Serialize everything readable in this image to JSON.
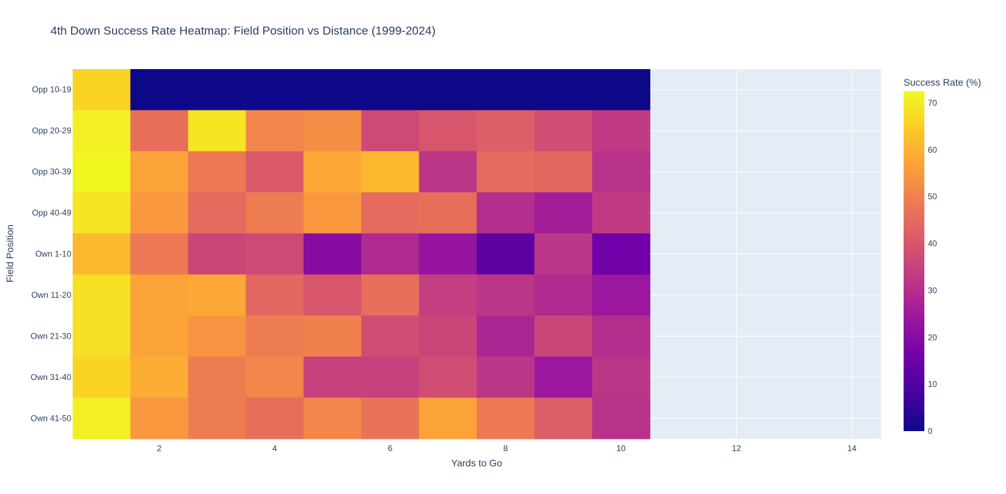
{
  "chart_data": {
    "type": "heatmap",
    "title": "4th Down Success Rate Heatmap: Field Position vs Distance (1999-2024)",
    "xlabel": "Yards to Go",
    "ylabel": "Field Position",
    "x": [
      1,
      2,
      3,
      4,
      5,
      6,
      7,
      8,
      9,
      10
    ],
    "y": [
      "Opp 10-19",
      "Opp 20-29",
      "Opp 30-39",
      "Opp 40-49",
      "Own 1-10",
      "Own 11-20",
      "Own 21-30",
      "Own 31-40",
      "Own 41-50"
    ],
    "z": [
      [
        66,
        0,
        0,
        0,
        0,
        0,
        0,
        0,
        0,
        0
      ],
      [
        71,
        46,
        69,
        51,
        53,
        37,
        40,
        42,
        38,
        33
      ],
      [
        72,
        57,
        48,
        41,
        58,
        61,
        32,
        45,
        44,
        31
      ],
      [
        69,
        55,
        45,
        49,
        55,
        45,
        46,
        30,
        26,
        33
      ],
      [
        61,
        48,
        36,
        37,
        20,
        29,
        23,
        12,
        32,
        16
      ],
      [
        68,
        57,
        58,
        44,
        40,
        46,
        34,
        32,
        29,
        24
      ],
      [
        68,
        57,
        54,
        49,
        50,
        38,
        36,
        28,
        36,
        30
      ],
      [
        66,
        59,
        49,
        51,
        35,
        35,
        38,
        32,
        24,
        32
      ],
      [
        71,
        55,
        49,
        46,
        51,
        47,
        57,
        48,
        42,
        31
      ]
    ],
    "xlim": [
      0.5,
      14.5
    ],
    "x_ticks": [
      2,
      4,
      6,
      8,
      10,
      12,
      14
    ],
    "colorbar": {
      "title": "Success Rate (%)",
      "min": 0,
      "max": 72.5,
      "ticks": [
        0,
        10,
        20,
        30,
        40,
        50,
        60,
        70
      ],
      "colorscale": [
        "#0d0887",
        "#46039f",
        "#7201a8",
        "#9c179e",
        "#bd3786",
        "#d8576b",
        "#ed7953",
        "#fb9f3a",
        "#fdca26",
        "#f0f921"
      ]
    },
    "background": "#e5ecf6",
    "grid": true
  }
}
